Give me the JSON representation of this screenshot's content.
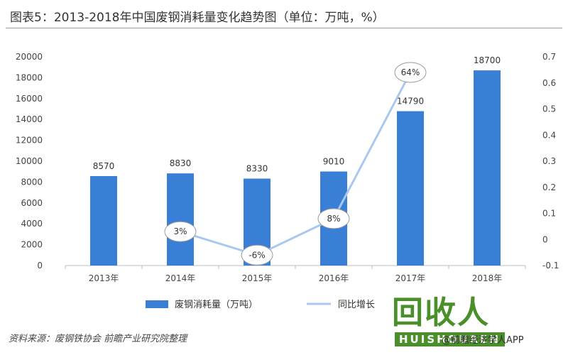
{
  "chart_data": {
    "type": "bar",
    "title": "图表5：2013-2018年中国废钢消耗量变化趋势图（单位：万吨，%）",
    "categories": [
      "2013年",
      "2014年",
      "2015年",
      "2016年",
      "2017年",
      "2018年"
    ],
    "series": [
      {
        "name": "废钢消耗量（万吨）",
        "type": "bar",
        "axis": "left",
        "color": "#3a7fd6",
        "values": [
          8570,
          8830,
          8330,
          9010,
          14790,
          18700
        ],
        "labels": [
          "8570",
          "8830",
          "8330",
          "9010",
          "14790",
          "18700"
        ]
      },
      {
        "name": "同比增长",
        "type": "line",
        "axis": "right",
        "color": "#aac8ee",
        "points": [
          {
            "category": "2014年",
            "value": 0.03,
            "label": "3%"
          },
          {
            "category": "2015年",
            "value": -0.06,
            "label": "-6%"
          },
          {
            "category": "2016年",
            "value": 0.08,
            "label": "8%"
          },
          {
            "category": "2017年",
            "value": 0.64,
            "label": "64%"
          }
        ]
      }
    ],
    "y_left": {
      "min": 0,
      "max": 20000,
      "ticks": [
        "0",
        "2000",
        "4000",
        "6000",
        "8000",
        "10000",
        "12000",
        "14000",
        "16000",
        "18000",
        "20000"
      ]
    },
    "y_right": {
      "min": -0.1,
      "max": 0.7,
      "ticks": [
        "-0.1",
        "0",
        "0.1",
        "0.2",
        "0.3",
        "0.4",
        "0.5",
        "0.6",
        "0.7"
      ]
    },
    "legend_position": "bottom",
    "grid": false
  },
  "footer": {
    "source": "资料来源：废钢铁协会 前瞻产业研究院整理",
    "credit": "@前瞻经济学人APP"
  },
  "watermark": {
    "text": "回收人",
    "sub": "HUISHOUREN"
  }
}
